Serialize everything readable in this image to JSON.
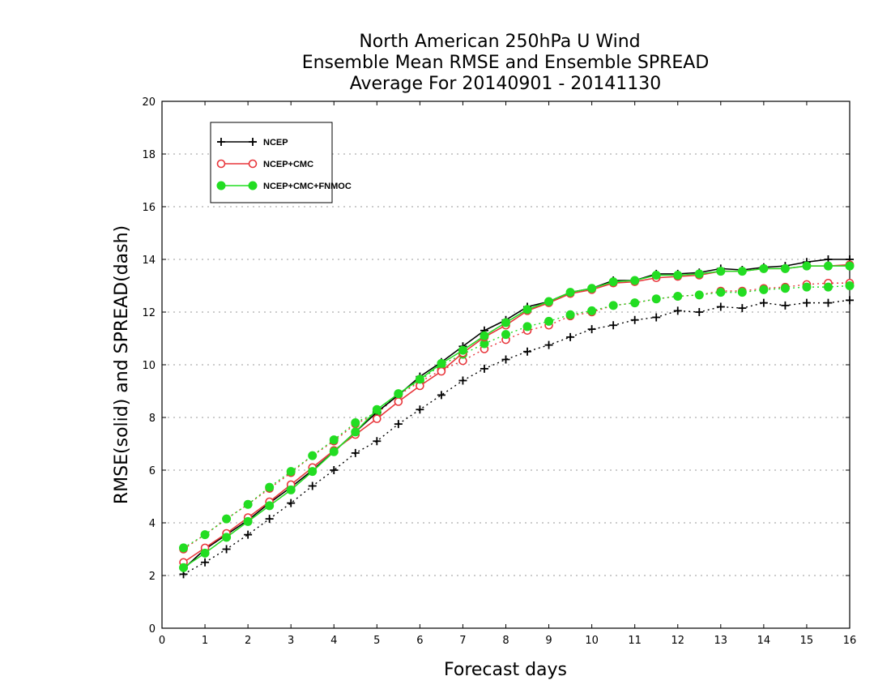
{
  "chart_data": {
    "type": "line",
    "title": [
      "North American 250hPa U Wind",
      "Ensemble Mean RMSE and Ensemble SPREAD",
      "Average For 20140901 - 20141130"
    ],
    "xlabel": "Forecast days",
    "ylabel": "RMSE(solid) and SPREAD(dash)",
    "xlim": [
      0,
      16
    ],
    "ylim": [
      0,
      20
    ],
    "xticks": [
      0,
      1,
      2,
      3,
      4,
      5,
      6,
      7,
      8,
      9,
      10,
      11,
      12,
      13,
      14,
      15,
      16
    ],
    "yticks": [
      0,
      2,
      4,
      6,
      8,
      10,
      12,
      14,
      16,
      18,
      20
    ],
    "grid": "horizontal dotted",
    "legend_position": "top-left",
    "x": [
      0.5,
      1,
      1.5,
      2,
      2.5,
      3,
      3.5,
      4,
      4.5,
      5,
      5.5,
      6,
      6.5,
      7,
      7.5,
      8,
      8.5,
      9,
      9.5,
      10,
      10.5,
      11,
      11.5,
      12,
      12.5,
      13,
      13.5,
      14,
      14.5,
      15,
      15.5,
      16
    ],
    "series": [
      {
        "name": "NCEP",
        "metric": "RMSE",
        "style": "solid",
        "marker": "plus",
        "color": "#000000",
        "values": [
          2.25,
          3.0,
          3.55,
          4.1,
          4.75,
          5.35,
          6.0,
          6.7,
          7.45,
          8.2,
          8.85,
          9.55,
          10.1,
          10.7,
          11.3,
          11.7,
          12.2,
          12.4,
          12.75,
          12.9,
          13.2,
          13.2,
          13.45,
          13.45,
          13.5,
          13.65,
          13.6,
          13.7,
          13.75,
          13.9,
          14.0,
          14.0
        ]
      },
      {
        "name": "NCEP+CMC",
        "metric": "RMSE",
        "style": "solid",
        "marker": "open-circle",
        "color": "#e8363b",
        "values": [
          2.5,
          3.05,
          3.6,
          4.2,
          4.8,
          5.45,
          6.1,
          6.75,
          7.35,
          7.95,
          8.6,
          9.2,
          9.75,
          10.45,
          11.05,
          11.5,
          12.05,
          12.35,
          12.7,
          12.85,
          13.1,
          13.15,
          13.3,
          13.35,
          13.4,
          13.55,
          13.55,
          13.65,
          13.65,
          13.75,
          13.75,
          13.8
        ]
      },
      {
        "name": "NCEP+CMC+FNMOC",
        "metric": "RMSE",
        "style": "solid",
        "marker": "filled-circle",
        "color": "#22dd22",
        "values": [
          2.3,
          2.85,
          3.45,
          4.05,
          4.65,
          5.25,
          5.95,
          6.7,
          7.45,
          8.3,
          8.9,
          9.45,
          10.05,
          10.55,
          11.1,
          11.6,
          12.1,
          12.4,
          12.75,
          12.9,
          13.15,
          13.2,
          13.4,
          13.4,
          13.45,
          13.55,
          13.55,
          13.65,
          13.65,
          13.75,
          13.75,
          13.75
        ]
      },
      {
        "name": "NCEP",
        "metric": "SPREAD",
        "style": "dash",
        "marker": "plus",
        "color": "#000000",
        "values": [
          2.05,
          2.5,
          3.0,
          3.55,
          4.15,
          4.75,
          5.4,
          6.0,
          6.65,
          7.1,
          7.75,
          8.3,
          8.85,
          9.4,
          9.85,
          10.2,
          10.5,
          10.75,
          11.05,
          11.35,
          11.5,
          11.7,
          11.8,
          12.05,
          12.0,
          12.2,
          12.15,
          12.35,
          12.25,
          12.35,
          12.35,
          12.45
        ]
      },
      {
        "name": "NCEP+CMC",
        "metric": "SPREAD",
        "style": "dash",
        "marker": "open-circle",
        "color": "#e8363b",
        "values": [
          3.0,
          3.55,
          4.15,
          4.7,
          5.3,
          5.9,
          6.55,
          7.1,
          7.75,
          8.15,
          8.85,
          9.35,
          9.8,
          10.15,
          10.6,
          10.95,
          11.3,
          11.5,
          11.85,
          12.0,
          12.25,
          12.35,
          12.5,
          12.6,
          12.65,
          12.8,
          12.8,
          12.9,
          12.95,
          13.05,
          13.1,
          13.1
        ]
      },
      {
        "name": "NCEP+CMC+FNMOC",
        "metric": "SPREAD",
        "style": "dash",
        "marker": "filled-circle",
        "color": "#22dd22",
        "values": [
          3.05,
          3.55,
          4.15,
          4.7,
          5.35,
          5.95,
          6.55,
          7.15,
          7.8,
          8.2,
          8.9,
          9.4,
          10.0,
          10.4,
          10.8,
          11.15,
          11.45,
          11.65,
          11.9,
          12.05,
          12.25,
          12.35,
          12.5,
          12.6,
          12.65,
          12.75,
          12.75,
          12.85,
          12.9,
          12.95,
          12.95,
          13.0
        ]
      }
    ],
    "legend": [
      {
        "label": "NCEP",
        "marker": "plus",
        "color": "#000000"
      },
      {
        "label": "NCEP+CMC",
        "marker": "open-circle",
        "color": "#e8363b"
      },
      {
        "label": "NCEP+CMC+FNMOC",
        "marker": "filled-circle",
        "color": "#22dd22"
      }
    ]
  }
}
